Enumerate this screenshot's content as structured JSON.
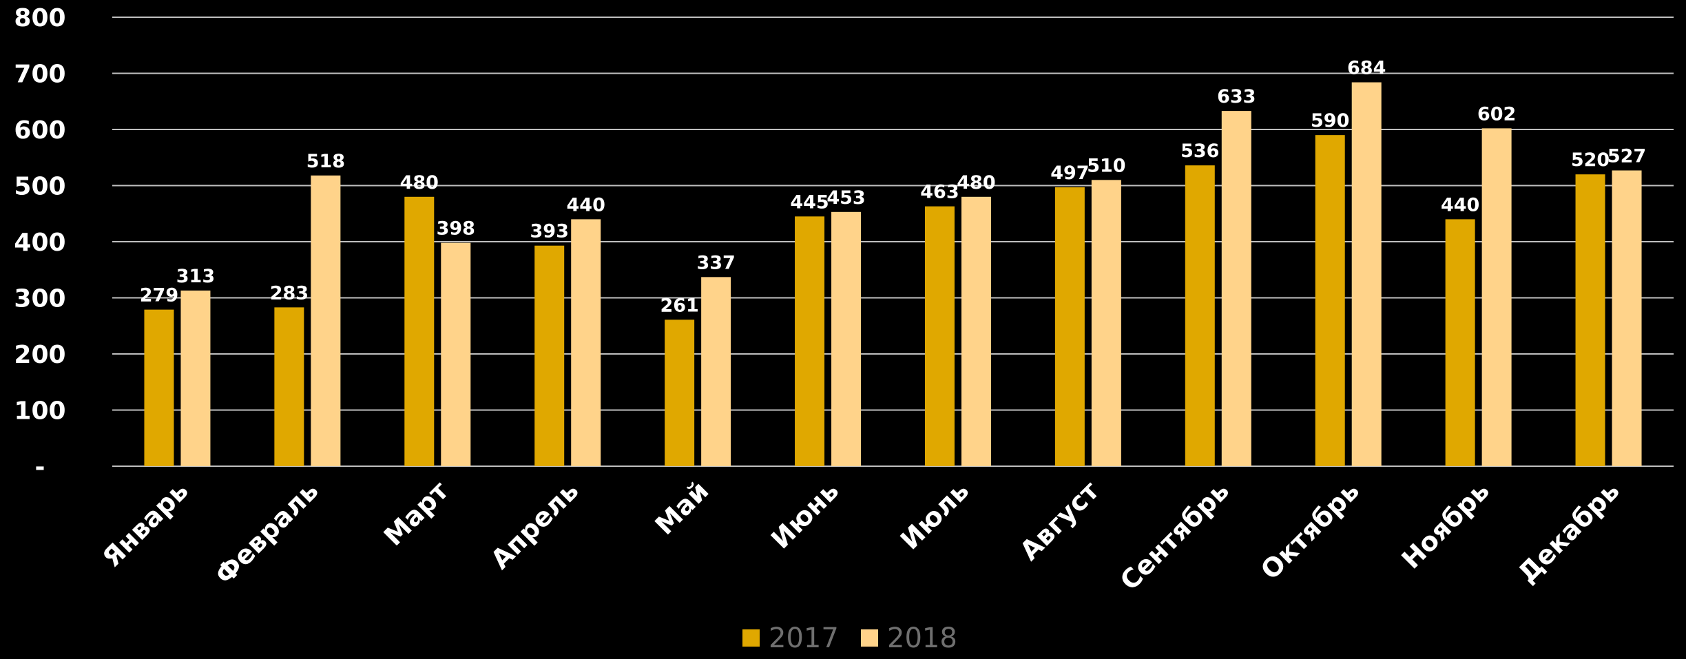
{
  "chart_data": {
    "type": "bar",
    "title": "",
    "xlabel": "",
    "ylabel": "",
    "categories": [
      "Январь",
      "Февраль",
      "Март",
      "Апрель",
      "Май",
      "Июнь",
      "Июль",
      "Август",
      "Сентябрь",
      "Октябрь",
      "Ноябрь",
      "Декабрь"
    ],
    "series": [
      {
        "name": "2017",
        "color": "#E0A800",
        "values": [
          279,
          283,
          480,
          393,
          261,
          445,
          463,
          497,
          536,
          590,
          440,
          520
        ]
      },
      {
        "name": "2018",
        "color": "#FFD38A",
        "values": [
          313,
          518,
          398,
          440,
          337,
          453,
          480,
          510,
          633,
          684,
          602,
          527
        ]
      }
    ],
    "ylim": [
      0,
      800
    ],
    "yticks": [
      0,
      100,
      200,
      300,
      400,
      500,
      600,
      700,
      800
    ],
    "ytick_labels": [
      "-",
      "100",
      "200",
      "300",
      "400",
      "500",
      "600",
      "700",
      "800"
    ],
    "grid": true,
    "legend_position": "bottom",
    "data_labels": true,
    "background": "#000000",
    "text_color": "#FFFFFF",
    "gridline_color": "#BFBFBF",
    "legend_text_color": "#6F6F6F"
  }
}
